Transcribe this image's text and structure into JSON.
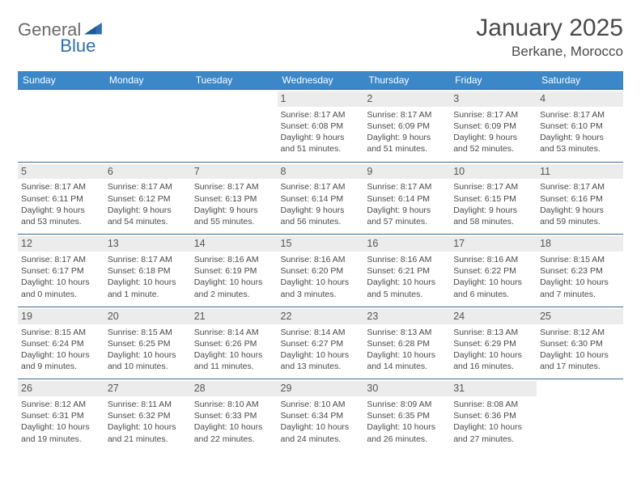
{
  "logo": {
    "word1": "General",
    "word2": "Blue"
  },
  "title": "January 2025",
  "location": "Berkane, Morocco",
  "colors": {
    "header_bg": "#3b87c8",
    "header_text": "#ffffff",
    "cell_border": "#3b6b95",
    "daynum_bg": "#ececec",
    "logo_gray": "#6b6b6b",
    "logo_blue": "#2f6fad",
    "text": "#4a4a4a",
    "background": "#ffffff"
  },
  "weekdays": [
    "Sunday",
    "Monday",
    "Tuesday",
    "Wednesday",
    "Thursday",
    "Friday",
    "Saturday"
  ],
  "weeks": [
    [
      {
        "empty": true
      },
      {
        "empty": true
      },
      {
        "empty": true
      },
      {
        "day": "1",
        "sunrise": "Sunrise: 8:17 AM",
        "sunset": "Sunset: 6:08 PM",
        "d1": "Daylight: 9 hours",
        "d2": "and 51 minutes."
      },
      {
        "day": "2",
        "sunrise": "Sunrise: 8:17 AM",
        "sunset": "Sunset: 6:09 PM",
        "d1": "Daylight: 9 hours",
        "d2": "and 51 minutes."
      },
      {
        "day": "3",
        "sunrise": "Sunrise: 8:17 AM",
        "sunset": "Sunset: 6:09 PM",
        "d1": "Daylight: 9 hours",
        "d2": "and 52 minutes."
      },
      {
        "day": "4",
        "sunrise": "Sunrise: 8:17 AM",
        "sunset": "Sunset: 6:10 PM",
        "d1": "Daylight: 9 hours",
        "d2": "and 53 minutes."
      }
    ],
    [
      {
        "day": "5",
        "sunrise": "Sunrise: 8:17 AM",
        "sunset": "Sunset: 6:11 PM",
        "d1": "Daylight: 9 hours",
        "d2": "and 53 minutes."
      },
      {
        "day": "6",
        "sunrise": "Sunrise: 8:17 AM",
        "sunset": "Sunset: 6:12 PM",
        "d1": "Daylight: 9 hours",
        "d2": "and 54 minutes."
      },
      {
        "day": "7",
        "sunrise": "Sunrise: 8:17 AM",
        "sunset": "Sunset: 6:13 PM",
        "d1": "Daylight: 9 hours",
        "d2": "and 55 minutes."
      },
      {
        "day": "8",
        "sunrise": "Sunrise: 8:17 AM",
        "sunset": "Sunset: 6:14 PM",
        "d1": "Daylight: 9 hours",
        "d2": "and 56 minutes."
      },
      {
        "day": "9",
        "sunrise": "Sunrise: 8:17 AM",
        "sunset": "Sunset: 6:14 PM",
        "d1": "Daylight: 9 hours",
        "d2": "and 57 minutes."
      },
      {
        "day": "10",
        "sunrise": "Sunrise: 8:17 AM",
        "sunset": "Sunset: 6:15 PM",
        "d1": "Daylight: 9 hours",
        "d2": "and 58 minutes."
      },
      {
        "day": "11",
        "sunrise": "Sunrise: 8:17 AM",
        "sunset": "Sunset: 6:16 PM",
        "d1": "Daylight: 9 hours",
        "d2": "and 59 minutes."
      }
    ],
    [
      {
        "day": "12",
        "sunrise": "Sunrise: 8:17 AM",
        "sunset": "Sunset: 6:17 PM",
        "d1": "Daylight: 10 hours",
        "d2": "and 0 minutes."
      },
      {
        "day": "13",
        "sunrise": "Sunrise: 8:17 AM",
        "sunset": "Sunset: 6:18 PM",
        "d1": "Daylight: 10 hours",
        "d2": "and 1 minute."
      },
      {
        "day": "14",
        "sunrise": "Sunrise: 8:16 AM",
        "sunset": "Sunset: 6:19 PM",
        "d1": "Daylight: 10 hours",
        "d2": "and 2 minutes."
      },
      {
        "day": "15",
        "sunrise": "Sunrise: 8:16 AM",
        "sunset": "Sunset: 6:20 PM",
        "d1": "Daylight: 10 hours",
        "d2": "and 3 minutes."
      },
      {
        "day": "16",
        "sunrise": "Sunrise: 8:16 AM",
        "sunset": "Sunset: 6:21 PM",
        "d1": "Daylight: 10 hours",
        "d2": "and 5 minutes."
      },
      {
        "day": "17",
        "sunrise": "Sunrise: 8:16 AM",
        "sunset": "Sunset: 6:22 PM",
        "d1": "Daylight: 10 hours",
        "d2": "and 6 minutes."
      },
      {
        "day": "18",
        "sunrise": "Sunrise: 8:15 AM",
        "sunset": "Sunset: 6:23 PM",
        "d1": "Daylight: 10 hours",
        "d2": "and 7 minutes."
      }
    ],
    [
      {
        "day": "19",
        "sunrise": "Sunrise: 8:15 AM",
        "sunset": "Sunset: 6:24 PM",
        "d1": "Daylight: 10 hours",
        "d2": "and 9 minutes."
      },
      {
        "day": "20",
        "sunrise": "Sunrise: 8:15 AM",
        "sunset": "Sunset: 6:25 PM",
        "d1": "Daylight: 10 hours",
        "d2": "and 10 minutes."
      },
      {
        "day": "21",
        "sunrise": "Sunrise: 8:14 AM",
        "sunset": "Sunset: 6:26 PM",
        "d1": "Daylight: 10 hours",
        "d2": "and 11 minutes."
      },
      {
        "day": "22",
        "sunrise": "Sunrise: 8:14 AM",
        "sunset": "Sunset: 6:27 PM",
        "d1": "Daylight: 10 hours",
        "d2": "and 13 minutes."
      },
      {
        "day": "23",
        "sunrise": "Sunrise: 8:13 AM",
        "sunset": "Sunset: 6:28 PM",
        "d1": "Daylight: 10 hours",
        "d2": "and 14 minutes."
      },
      {
        "day": "24",
        "sunrise": "Sunrise: 8:13 AM",
        "sunset": "Sunset: 6:29 PM",
        "d1": "Daylight: 10 hours",
        "d2": "and 16 minutes."
      },
      {
        "day": "25",
        "sunrise": "Sunrise: 8:12 AM",
        "sunset": "Sunset: 6:30 PM",
        "d1": "Daylight: 10 hours",
        "d2": "and 17 minutes."
      }
    ],
    [
      {
        "day": "26",
        "sunrise": "Sunrise: 8:12 AM",
        "sunset": "Sunset: 6:31 PM",
        "d1": "Daylight: 10 hours",
        "d2": "and 19 minutes."
      },
      {
        "day": "27",
        "sunrise": "Sunrise: 8:11 AM",
        "sunset": "Sunset: 6:32 PM",
        "d1": "Daylight: 10 hours",
        "d2": "and 21 minutes."
      },
      {
        "day": "28",
        "sunrise": "Sunrise: 8:10 AM",
        "sunset": "Sunset: 6:33 PM",
        "d1": "Daylight: 10 hours",
        "d2": "and 22 minutes."
      },
      {
        "day": "29",
        "sunrise": "Sunrise: 8:10 AM",
        "sunset": "Sunset: 6:34 PM",
        "d1": "Daylight: 10 hours",
        "d2": "and 24 minutes."
      },
      {
        "day": "30",
        "sunrise": "Sunrise: 8:09 AM",
        "sunset": "Sunset: 6:35 PM",
        "d1": "Daylight: 10 hours",
        "d2": "and 26 minutes."
      },
      {
        "day": "31",
        "sunrise": "Sunrise: 8:08 AM",
        "sunset": "Sunset: 6:36 PM",
        "d1": "Daylight: 10 hours",
        "d2": "and 27 minutes."
      },
      {
        "empty": true
      }
    ]
  ]
}
